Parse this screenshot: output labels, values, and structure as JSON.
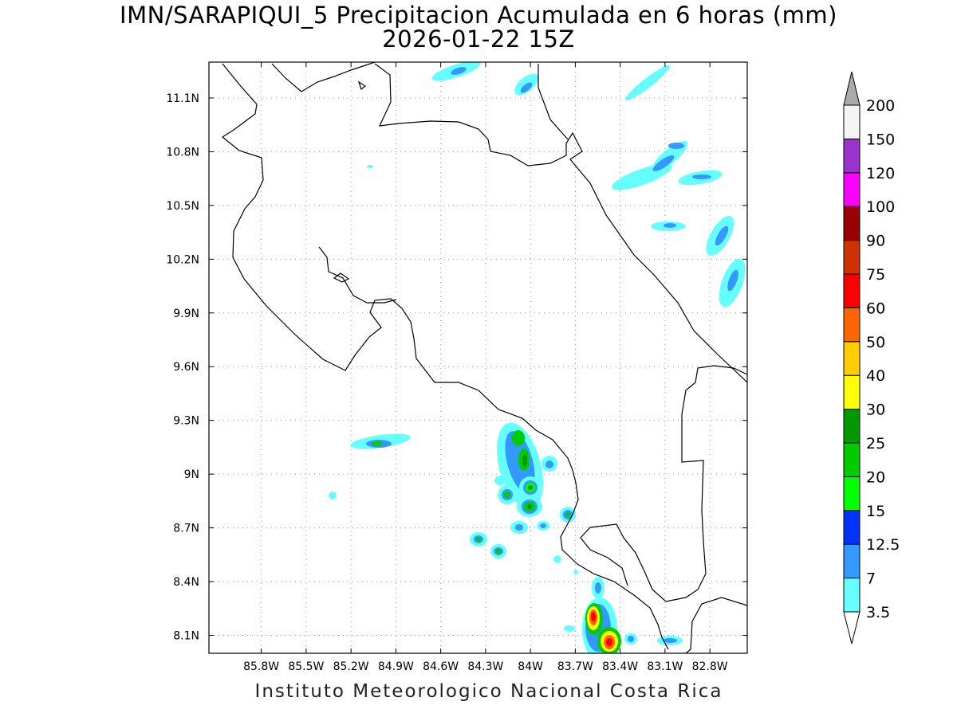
{
  "title": {
    "line1": "IMN/SARAPIQUI_5 Precipitacion Acumulada en 6 horas (mm)",
    "line2": "2026-01-22 15Z"
  },
  "footer": "Instituto Meteorologico Nacional Costa Rica",
  "map": {
    "lon_range": [
      -86.15,
      -82.55
    ],
    "lat_range": [
      8.0,
      11.3
    ],
    "lon_ticks": [
      "85.8W",
      "85.5W",
      "85.2W",
      "84.9W",
      "84.6W",
      "84.3W",
      "84W",
      "83.7W",
      "83.4W",
      "83.1W",
      "82.8W"
    ],
    "lat_ticks": [
      "11.1N",
      "10.8N",
      "10.5N",
      "10.2N",
      "9.9N",
      "9.6N",
      "9.3N",
      "9N",
      "8.7N",
      "8.4N",
      "8.1N"
    ],
    "grid": true
  },
  "colorbar": {
    "levels": [
      "3.5",
      "7",
      "12.5",
      "15",
      "20",
      "25",
      "30",
      "40",
      "50",
      "60",
      "75",
      "90",
      "100",
      "120",
      "150",
      "200"
    ],
    "colors": [
      "#66ffff",
      "#3399ff",
      "#0033ff",
      "#00ff00",
      "#00cc00",
      "#009900",
      "#ffff00",
      "#ffcc00",
      "#ff6600",
      "#ff0000",
      "#cc3300",
      "#990000",
      "#ff00ff",
      "#9933cc",
      "#f5f5f5",
      "#aaaaaa"
    ]
  }
}
